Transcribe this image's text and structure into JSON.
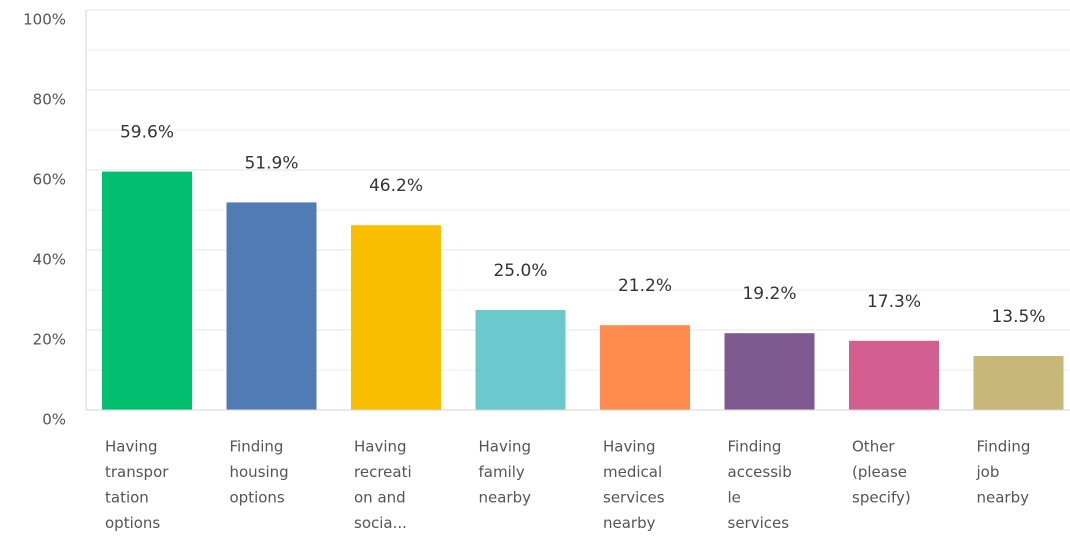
{
  "chart_data": {
    "type": "bar",
    "categories": [
      [
        "Having",
        "transpor",
        "tation",
        "options"
      ],
      [
        "Finding",
        "housing",
        "options"
      ],
      [
        "Having",
        "recreati",
        "on and",
        "socia..."
      ],
      [
        "Having",
        "family",
        "nearby"
      ],
      [
        "Having",
        "medical",
        "services",
        "nearby"
      ],
      [
        "Finding",
        "accessib",
        "le",
        "services"
      ],
      [
        "Other",
        "(please",
        "specify)"
      ],
      [
        "Finding",
        "job",
        "nearby"
      ]
    ],
    "values": [
      59.6,
      51.9,
      46.2,
      25.0,
      21.2,
      19.2,
      17.3,
      13.5
    ],
    "value_labels": [
      "59.6%",
      "51.9%",
      "46.2%",
      "25.0%",
      "21.2%",
      "19.2%",
      "17.3%",
      "13.5%"
    ],
    "colors": [
      "#00bf6f",
      "#507cb6",
      "#f9be00",
      "#6bc8cd",
      "#ff8b4f",
      "#7f5a91",
      "#d25f90",
      "#c9b77a"
    ],
    "ylim": [
      0,
      100
    ],
    "yticks": [
      {
        "value": 0,
        "label": "0%"
      },
      {
        "value": 20,
        "label": "20%"
      },
      {
        "value": 40,
        "label": "40%"
      },
      {
        "value": 60,
        "label": "60%"
      },
      {
        "value": 80,
        "label": "80%"
      },
      {
        "value": 100,
        "label": "100%"
      }
    ],
    "minor_yticks": [
      10,
      30,
      50,
      70,
      90
    ],
    "grid": true
  }
}
